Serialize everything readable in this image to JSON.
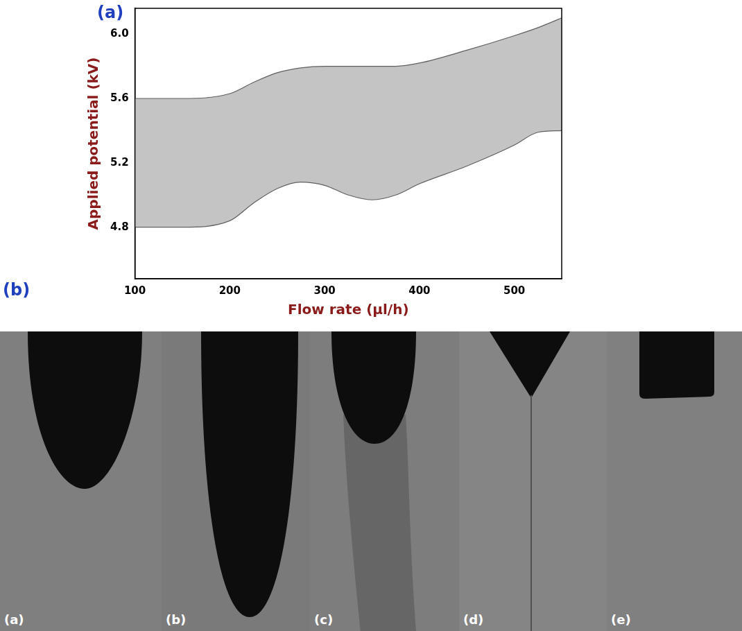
{
  "figure": {
    "panel_labels": [
      "(a)",
      "(b)"
    ]
  },
  "chart_data": {
    "type": "area",
    "x_label": "Flow rate (μl/h)",
    "y_label": "Applied potential (kV)",
    "x": [
      100,
      150,
      200,
      225,
      250,
      275,
      300,
      325,
      350,
      375,
      400,
      450,
      500,
      525,
      550
    ],
    "series": [
      {
        "color": "#c4c4c4",
        "values": [
          5.6,
          5.6,
          5.63,
          5.7,
          5.76,
          5.79,
          5.8,
          5.8,
          5.8,
          5.8,
          5.82,
          5.9,
          5.99,
          6.04,
          6.1
        ]
      },
      {
        "color": "#c4c4c4",
        "values": [
          4.8,
          4.8,
          4.84,
          4.95,
          5.04,
          5.08,
          5.06,
          5.0,
          4.97,
          5.0,
          5.07,
          5.18,
          5.31,
          5.39,
          5.4
        ]
      }
    ],
    "xlim": [
      100,
      550
    ],
    "xticks": [
      100,
      200,
      300,
      400,
      500
    ],
    "ylim": [
      4.48,
      6.16
    ],
    "yticks": [
      4.8,
      5.2,
      5.6,
      {
        "value": 6,
        "label": "6.0"
      }
    ],
    "grid": false
  },
  "photo_strip": {
    "labels": [
      "(a)",
      "(b)",
      "(c)",
      "(d)",
      "(e)"
    ]
  }
}
